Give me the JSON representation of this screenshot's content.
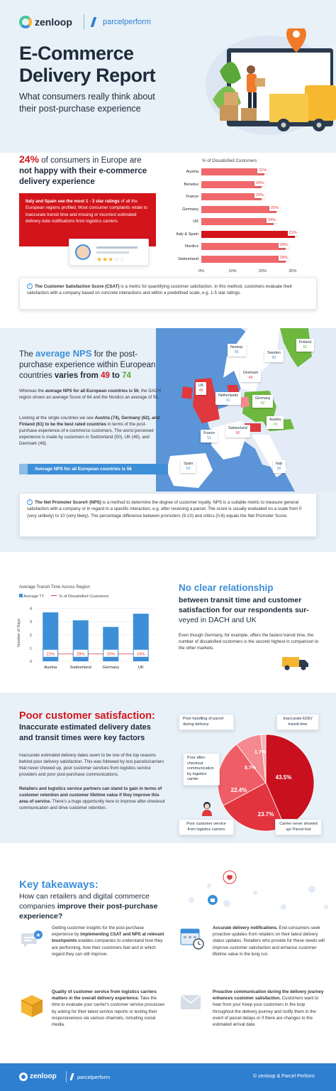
{
  "header": {
    "logo1": "zenloop",
    "logo2": "parcelperform",
    "title_line1": "E-Commerce",
    "title_line2": "Delivery Report",
    "subtitle_line1": "What consumers really think about",
    "subtitle_line2": "their post-purchase experience"
  },
  "section1": {
    "headline_pct": "24%",
    "headline_rest": " of consumers in Europe are",
    "headline_line2": "not happy with their e-commerce",
    "headline_line3": "delivery experience",
    "red_box_bold": "Italy and Spain see the most 1 - 3 star ratings",
    "red_box_rest": " of all the European regions profiled. Most consumer complaints relate to inaccurate transit time and missing or incorrect estimated delivery date notifications from logistics carriers.",
    "csat_bold": "The Customer Satisfaction Score (CSAT)",
    "csat_rest": " is a metric for quantifying customer satisfaction. In this method, customers evaluate their satisfaction with a company based on concrete interactions and within a predefined scale, e.g. 1-5 star ratings.",
    "chart_data": {
      "type": "bar",
      "title": "% of Dissatisfied Customers",
      "categories": [
        "Austria",
        "Benelux",
        "France",
        "Germany",
        "UK",
        "Italy & Spain",
        "Nordics",
        "Switzerland"
      ],
      "values": [
        21,
        20,
        20,
        25,
        24,
        31,
        28,
        28
      ],
      "value_labels": [
        "21%",
        "20%",
        "20%",
        "25%",
        "24%",
        "31%",
        "28%",
        "28%"
      ],
      "xticks": [
        "0%",
        "10%",
        "20%",
        "30%"
      ],
      "xlim": [
        0,
        33
      ],
      "bar_color": "#f0686b",
      "highlight_color": "#d3151b"
    }
  },
  "section2": {
    "headline_a": "The ",
    "headline_b": "average NPS",
    "headline_c": " for the post-",
    "headline_line2": "purchase experience within European",
    "headline_line3a": "countries ",
    "headline_line3b": "varies from ",
    "headline_49": "49",
    "headline_to": " to ",
    "headline_74": "74",
    "p1_a": "Whereas the ",
    "p1_b": "average NPS for all European countries is 56",
    "p1_c": ", the DACH region shows an average Score of 64 and the Nordics an average of 56.",
    "p2_a": "Looking at the single countries we see ",
    "p2_b": "Austria (74), Germany (62), and Finland (61) to be the best rated countries",
    "p2_c": " in terms of the post-purchase experience of e-commerce customers. The worst perceived experience is made by customers in Switzerland (50), UK (49), and Denmark (49).",
    "banner": "Average NPS for all European countries is 56",
    "nps_bold": "The Net Promoter Score® (NPS)",
    "nps_rest": " is a method to determine the degree of customer loyalty. NPS is a suitable metric to measure general satisfaction with a company or in regard to a specific interaction, e.g. after receiving a parcel. The score is usually evaluated on a scale from 0 (very unlikely) to 10 (very likely). The percentage difference between promoters (9-10) and critics (0-6) equals the Net Promoter Score.",
    "map_labels": [
      {
        "name": "Norway",
        "value": "55"
      },
      {
        "name": "Finland",
        "value": "61"
      },
      {
        "name": "Sweden",
        "value": "59"
      },
      {
        "name": "Denmark",
        "value": "49"
      },
      {
        "name": "UK",
        "value": "49"
      },
      {
        "name": "Netherlands",
        "value": "51"
      },
      {
        "name": "Germany",
        "value": "62"
      },
      {
        "name": "Austria",
        "value": "74"
      },
      {
        "name": "Switzerland",
        "value": "50"
      },
      {
        "name": "France",
        "value": "51"
      },
      {
        "name": "Spain",
        "value": "53"
      },
      {
        "name": "Italy",
        "value": "56"
      }
    ]
  },
  "section3": {
    "chart_data": {
      "type": "bar",
      "title": "Average Transit Time Across Region",
      "legend": [
        "Average TT",
        "% of Dissatisfied Customers"
      ],
      "ylabel": "Number of Days",
      "yticks": [
        "0",
        "1",
        "2",
        "3",
        "4"
      ],
      "ylim": [
        0,
        4.3
      ],
      "categories": [
        "Austria",
        "Switzerland",
        "Germany",
        "UK"
      ],
      "series": [
        {
          "name": "Average TT",
          "values": [
            3.7,
            3.1,
            2.6,
            3.6
          ]
        },
        {
          "name": "% of Dissatisfied Customers",
          "values": [
            21,
            28,
            25,
            24
          ],
          "labels": [
            "21%",
            "28%",
            "25%",
            "24%"
          ]
        }
      ],
      "colors": [
        "#3d8fd8",
        "#e0393d"
      ]
    },
    "headline_line1": "No clear relationship",
    "headline_line2": "between transit time and customer",
    "headline_line3": "satisfaction for our respondents sur-",
    "headline_line4": "veyed in DACH and UK",
    "para": "Even though Germany, for example, offers the fastest transit time, the number of dissatisfied customers is the second highest in comparison to the other markets."
  },
  "section4": {
    "headline_line1": "Poor customer satisfaction:",
    "headline_line2": "Inaccurate estimated delivery dates",
    "headline_line3": "and transit times were key factors",
    "p1": "Inaccurate estimated delivery dates seem to be one of the top reasons behind poor delivery satisfaction. This was followed by lost parcels/carriers that never showed up, poor customer services from logistics service providers and poor post-purchase communications.",
    "p2_bold": "Retailers and logistics service partners can stand to gain in terms of customer retention and customer lifetime value if they improve this area of service.",
    "p2_rest": " There's a huge opportunity here to improve after-checkout communication and drive customer retention.",
    "chart_data": {
      "type": "pie",
      "slices": [
        {
          "label": "Inaccurate EDD/ transit time",
          "value": 43.5,
          "text": "43.5%",
          "color": "#c8101e"
        },
        {
          "label": "Carrier never showed up/ Parcel lost",
          "value": 23.7,
          "text": "23.7%",
          "color": "#e2343e"
        },
        {
          "label": "Poor customer service from logistics carriers",
          "value": 22.4,
          "text": "22.4%",
          "color": "#ef5e66"
        },
        {
          "label": "Poor after-checkout communication by logistics carrier",
          "value": 8.7,
          "text": "8.7%",
          "color": "#f48a90"
        },
        {
          "label": "Poor handling of parcel during delivery",
          "value": 1.7,
          "text": "1.7%",
          "color": "#f7b4b8"
        }
      ]
    },
    "callouts": {
      "handling": "Poor handling of parcel during delivery",
      "edd": "Inaccurate EDD/ transit time",
      "after": "Poor after-checkout communication by logistics carrier",
      "service": "Poor customer service from logistics carriers",
      "carrier": "Carrier never showed up/ Parcel lost"
    }
  },
  "section5": {
    "title": "Key takeaways:",
    "sub_a": "How can retailers and digital commerce companies ",
    "sub_b": "improve their post-purchase experience?",
    "t1_a": "Getting customer insights for the post-purchase experience by ",
    "t1_b": "implementing CSAT and NPS at relevant touchpoints",
    "t1_c": " enables companies to understand how they are performing, how their customers feel and in which regard they can still improve.",
    "t2_b": "Quality of customer service from logistics carriers matters in the overall delivery experience.",
    "t2_c": " Take the time to evaluate your carrier's customer service processes by asking for their latest service reports or testing their responsiveness via various channels, including social media.",
    "t3_b": "Accurate delivery notifications.",
    "t3_c": " End-consumers seek proactive updates from retailers on their latest delivery status updates. Retailers who provide for these needs will improve customer satisfaction and enhance customer lifetime value in the long run.",
    "t4_b": "Proactive communication during the delivery journey enhances customer satisfaction.",
    "t4_c": " Customers want to hear from you! Keep your customers in the loop throughout the delivery journey and notify them in the event of parcel delays or if there are changes to the estimated arrival date."
  },
  "footer": {
    "logo1": "zenloop",
    "logo2": "parcelperform",
    "copyright": "© zenloop & Parcel Perform"
  },
  "colors": {
    "red": "#d3151b",
    "blue": "#3d8fd8",
    "green": "#5ba83a",
    "navy": "#1d2b3a",
    "footer": "#2f7fd0"
  }
}
